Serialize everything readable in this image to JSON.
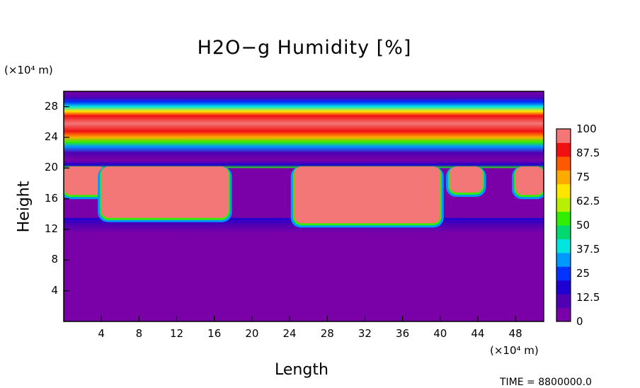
{
  "chart_data": {
    "type": "heatmap",
    "title": "H2O−g Humidity [%]",
    "xlabel": "Length",
    "ylabel": "Height",
    "x_unit": "(×10⁴ m)",
    "y_unit": "(×10⁴ m)",
    "xlim": [
      0,
      51
    ],
    "ylim": [
      0,
      30
    ],
    "x_ticks": [
      4,
      8,
      12,
      16,
      20,
      24,
      28,
      32,
      36,
      40,
      44,
      48
    ],
    "y_ticks": [
      4,
      8,
      12,
      16,
      20,
      24,
      28
    ],
    "colorbar": {
      "ticks": [
        0,
        12.5,
        25,
        37.5,
        50,
        62.5,
        75,
        87.5,
        100
      ],
      "tick_labels": [
        "0",
        "12.5",
        "25",
        "37.5",
        "50",
        "62.5",
        "75",
        "87.5",
        "100"
      ],
      "range": [
        0,
        100
      ],
      "colors": [
        "#7a00a8",
        "#5000b4",
        "#1e00d2",
        "#0033ff",
        "#0099ff",
        "#00e5e0",
        "#00d870",
        "#33ee00",
        "#b8f000",
        "#ffe600",
        "#ffaa00",
        "#ff5a00",
        "#f01010",
        "#f37777"
      ]
    },
    "upper_layer": [
      {
        "height": 20.0,
        "humidity": 50
      },
      {
        "height": 20.4,
        "humidity": 15
      },
      {
        "height": 21.0,
        "humidity": 6
      },
      {
        "height": 22.0,
        "humidity": 10
      },
      {
        "height": 22.8,
        "humidity": 30
      },
      {
        "height": 23.4,
        "humidity": 55
      },
      {
        "height": 24.0,
        "humidity": 75
      },
      {
        "height": 24.8,
        "humidity": 90
      },
      {
        "height": 25.8,
        "humidity": 96
      },
      {
        "height": 26.8,
        "humidity": 88
      },
      {
        "height": 27.4,
        "humidity": 65
      },
      {
        "height": 28.0,
        "humidity": 42
      },
      {
        "height": 28.6,
        "humidity": 25
      },
      {
        "height": 29.2,
        "humidity": 12
      },
      {
        "height": 30.0,
        "humidity": 4
      }
    ],
    "saturated_regions": [
      {
        "x_range": [
          0.0,
          4.5
        ],
        "height_range": [
          16.5,
          20.2
        ],
        "humidity": 100
      },
      {
        "x_range": [
          4.0,
          17.5
        ],
        "height_range": [
          13.5,
          20.2
        ],
        "humidity": 100
      },
      {
        "x_range": [
          24.5,
          40.0
        ],
        "height_range": [
          12.8,
          20.2
        ],
        "humidity": 100
      },
      {
        "x_range": [
          41.0,
          44.5
        ],
        "height_range": [
          16.8,
          20.2
        ],
        "humidity": 100
      },
      {
        "x_range": [
          48.0,
          51.0
        ],
        "height_range": [
          16.5,
          20.2
        ],
        "humidity": 100
      }
    ],
    "lower_boundary_humidity": 0,
    "annotation": "TIME = 8800000.0"
  }
}
